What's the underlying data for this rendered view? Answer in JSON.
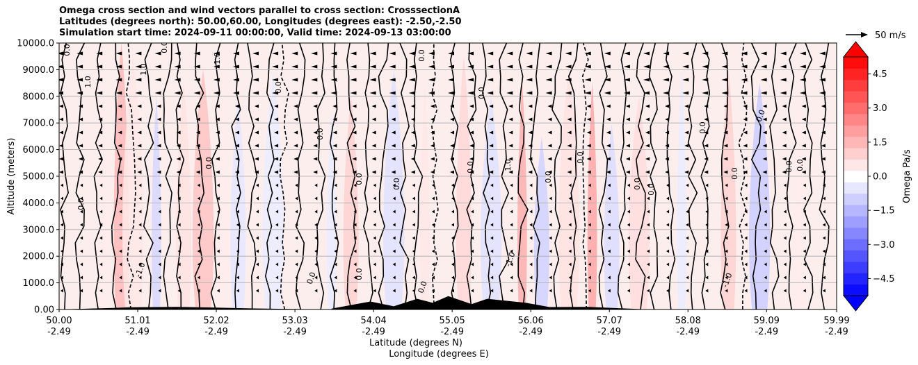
{
  "chart_data": {
    "type": "heatmap",
    "title": [
      "Omega cross section and wind vectors parallel to cross section: CrosssectionA",
      "Latitudes (degrees north): 50.00,60.00, Longitudes (degrees east): -2.50,-2.50",
      "Simulation start time: 2024-09-11 00:00:00, Valid time: 2024-09-13 03:00:00"
    ],
    "ylabel": "Altitude (meters)",
    "xlabel": "Latitude (degrees N)",
    "xlabel2": "Longitude (degrees E)",
    "xlim": [
      50.0,
      59.99
    ],
    "ylim": [
      0,
      10000
    ],
    "y_ticks": [
      "0.00",
      "1000.0",
      "2000.0",
      "3000.0",
      "4000.0",
      "5000.0",
      "6000.0",
      "7000.0",
      "8000.0",
      "9000.0",
      "10000.0"
    ],
    "x_ticks": [
      {
        "lat": "50.00",
        "lon": "-2.49"
      },
      {
        "lat": "51.01",
        "lon": "-2.49"
      },
      {
        "lat": "52.02",
        "lon": "-2.49"
      },
      {
        "lat": "53.03",
        "lon": "-2.49"
      },
      {
        "lat": "54.04",
        "lon": "-2.49"
      },
      {
        "lat": "55.05",
        "lon": "-2.49"
      },
      {
        "lat": "56.06",
        "lon": "-2.49"
      },
      {
        "lat": "57.07",
        "lon": "-2.49"
      },
      {
        "lat": "58.08",
        "lon": "-2.49"
      },
      {
        "lat": "59.09",
        "lon": "-2.49"
      },
      {
        "lat": "59.99",
        "lon": "-2.49"
      }
    ],
    "grid": true,
    "colorbar": {
      "label": "Omega Pa/s",
      "range": [
        -5.25,
        5.25
      ],
      "ticks": [
        "4.5",
        "3.0",
        "1.5",
        "0.0",
        "−1.5",
        "−3.0",
        "−4.5"
      ],
      "tick_values": [
        4.5,
        3.0,
        1.5,
        0.0,
        -1.5,
        -3.0,
        -4.5
      ],
      "n_levels": 21,
      "extend": "both",
      "low_color": "#0000ff",
      "mid_color": "#ffffff",
      "high_color": "#ff0000"
    },
    "quiver_key": {
      "label": "50 m/s",
      "speed": 50
    },
    "contour_label": "0.0",
    "contour_label_neg": "-1.0",
    "contour_label_pos": "1.0",
    "omega_bands": [
      {
        "lat": 50.55,
        "top": 10000,
        "value": 0.4
      },
      {
        "lat": 50.8,
        "top": 10000,
        "value": 1.4
      },
      {
        "lat": 50.95,
        "top": 9500,
        "value": 0.5
      },
      {
        "lat": 51.25,
        "top": 8000,
        "value": -0.8
      },
      {
        "lat": 51.6,
        "top": 8500,
        "value": 0.6
      },
      {
        "lat": 51.85,
        "top": 9000,
        "value": 1.2
      },
      {
        "lat": 52.1,
        "top": 10000,
        "value": 0.4
      },
      {
        "lat": 52.3,
        "top": 8000,
        "value": -0.5
      },
      {
        "lat": 52.75,
        "top": 9000,
        "value": -0.4
      },
      {
        "lat": 53.5,
        "top": 7500,
        "value": -0.4
      },
      {
        "lat": 53.75,
        "top": 8000,
        "value": 0.9
      },
      {
        "lat": 54.3,
        "top": 9000,
        "value": -0.6
      },
      {
        "lat": 54.7,
        "top": 8500,
        "value": 0.5
      },
      {
        "lat": 55.2,
        "top": 9500,
        "value": 0.8
      },
      {
        "lat": 55.55,
        "top": 8000,
        "value": -0.6
      },
      {
        "lat": 55.95,
        "top": 8500,
        "value": 1.6
      },
      {
        "lat": 56.2,
        "top": 6500,
        "value": -0.9
      },
      {
        "lat": 56.55,
        "top": 9000,
        "value": 0.6
      },
      {
        "lat": 56.85,
        "top": 8500,
        "value": 1.8
      },
      {
        "lat": 57.1,
        "top": 7000,
        "value": -0.7
      },
      {
        "lat": 57.45,
        "top": 8000,
        "value": 0.7
      },
      {
        "lat": 58.0,
        "top": 9000,
        "value": -0.4
      },
      {
        "lat": 58.6,
        "top": 9000,
        "value": 0.9
      },
      {
        "lat": 59.0,
        "top": 8500,
        "value": -1.0
      },
      {
        "lat": 59.5,
        "top": 9000,
        "value": 0.4
      }
    ],
    "terrain": [
      {
        "lat": 50.0,
        "h": 0
      },
      {
        "lat": 50.7,
        "h": 60
      },
      {
        "lat": 50.9,
        "h": 80
      },
      {
        "lat": 51.5,
        "h": 100
      },
      {
        "lat": 52.0,
        "h": 70
      },
      {
        "lat": 52.5,
        "h": 40
      },
      {
        "lat": 53.5,
        "h": 0
      },
      {
        "lat": 53.5,
        "h": 30
      },
      {
        "lat": 54.0,
        "h": 300
      },
      {
        "lat": 54.3,
        "h": 120
      },
      {
        "lat": 54.6,
        "h": 400
      },
      {
        "lat": 54.8,
        "h": 250
      },
      {
        "lat": 55.0,
        "h": 500
      },
      {
        "lat": 55.3,
        "h": 200
      },
      {
        "lat": 55.5,
        "h": 400
      },
      {
        "lat": 56.0,
        "h": 250
      },
      {
        "lat": 56.3,
        "h": 90
      },
      {
        "lat": 56.8,
        "h": 100
      },
      {
        "lat": 57.1,
        "h": 60
      },
      {
        "lat": 57.6,
        "h": 0
      }
    ]
  }
}
